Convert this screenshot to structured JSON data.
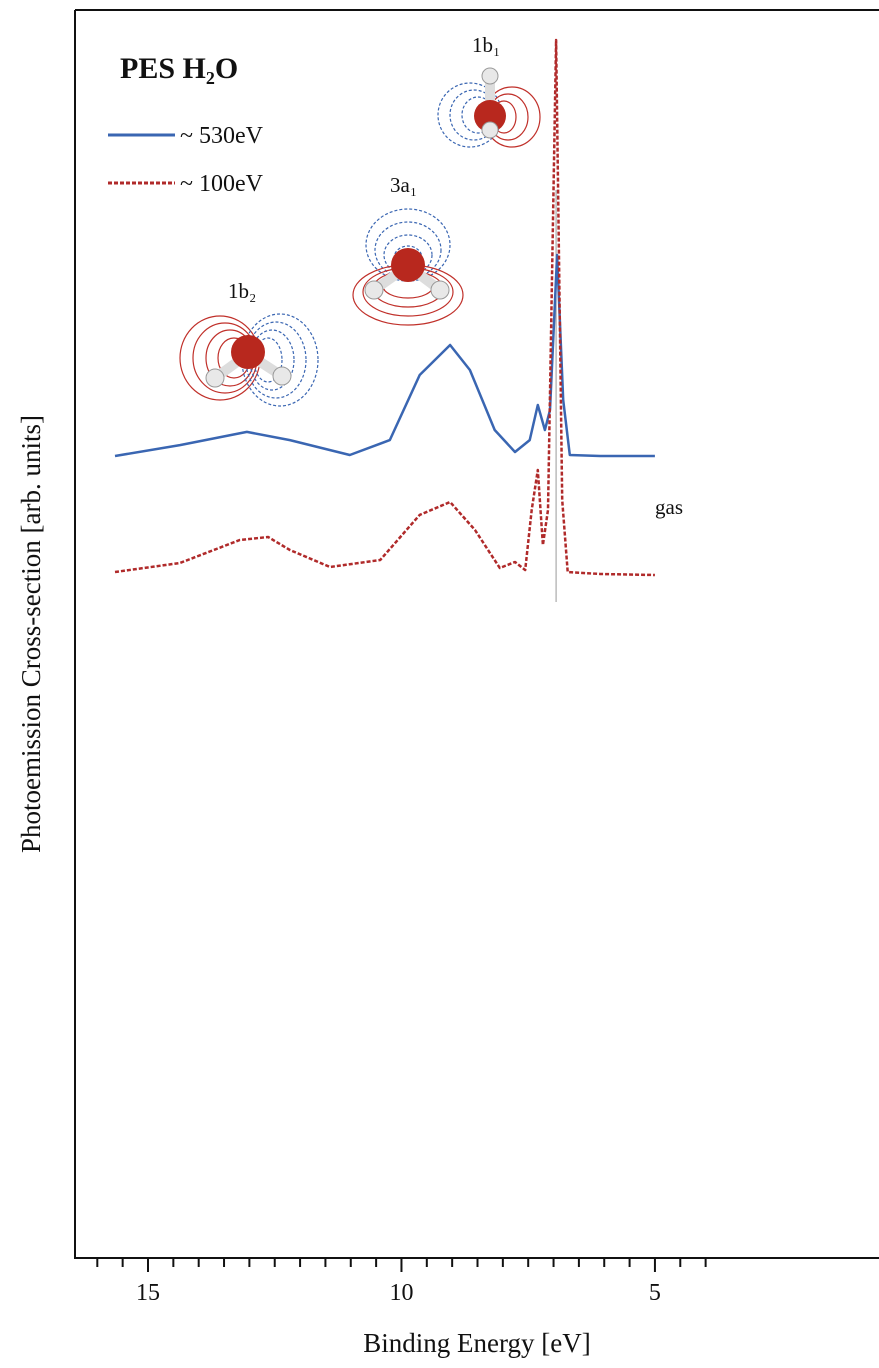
{
  "chart_data": {
    "type": "line",
    "title": "PES H₂O",
    "x_label": "Binding Energy [eV]",
    "y_label": "Photoemission Cross-section  [arb. units]",
    "xlim": [
      16.44,
      0.58
    ],
    "ylim": [
      0,
      100
    ],
    "xticks": [
      15,
      10,
      5
    ],
    "minor_xticks": [
      16,
      15.5,
      14.5,
      14,
      13.5,
      13,
      12.5,
      12,
      11.5,
      11,
      10.5,
      9.5,
      9,
      8.5,
      8,
      7.5,
      7,
      6.5,
      6,
      5.5,
      4.5,
      4
    ],
    "vlines": [
      6.95
    ],
    "annotations": [
      "gas",
      "1b₂",
      "3a₁",
      "1b₁"
    ],
    "series": [
      {
        "name": "~ 530eV",
        "color": "#3a66b2",
        "dash": false,
        "x": [
          15.65,
          14.37,
          13.05,
          12.2,
          11.02,
          10.23,
          9.64,
          9.04,
          8.65,
          8.16,
          7.76,
          7.47,
          7.31,
          7.17,
          7.07,
          6.93,
          6.81,
          6.68,
          6.08,
          5.0
        ],
        "values": [
          64.26,
          65.14,
          66.19,
          65.54,
          64.34,
          65.54,
          70.75,
          73.16,
          71.15,
          66.35,
          64.58,
          65.54,
          68.35,
          66.35,
          67.95,
          80.37,
          68.75,
          64.34,
          64.26,
          64.26
        ]
      },
      {
        "name": "~ 100eV",
        "color": "#b02a2a",
        "dash": true,
        "x": [
          15.65,
          14.37,
          13.19,
          12.63,
          12.2,
          11.41,
          10.42,
          9.64,
          9.04,
          8.55,
          8.06,
          7.76,
          7.56,
          7.43,
          7.31,
          7.21,
          7.11,
          6.95,
          6.83,
          6.72,
          6.08,
          5.0
        ],
        "values": [
          54.97,
          55.69,
          57.53,
          57.77,
          56.73,
          55.37,
          55.93,
          59.54,
          60.58,
          58.33,
          55.29,
          55.77,
          55.13,
          59.94,
          63.14,
          57.13,
          59.94,
          97.6,
          60.74,
          54.97,
          54.81,
          54.73
        ]
      }
    ]
  }
}
